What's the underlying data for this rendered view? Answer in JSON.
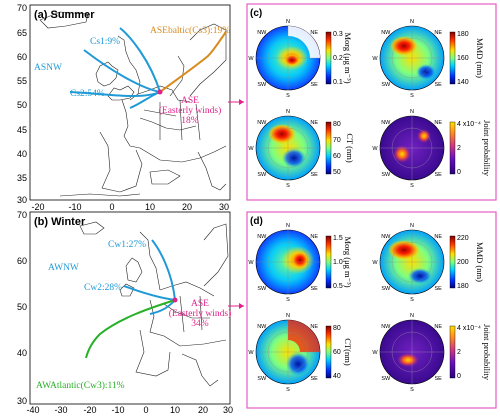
{
  "panels": {
    "summer": {
      "title": "(a) Summer",
      "x_ticks": [
        "-20",
        "-10",
        "0",
        "10",
        "20",
        "30"
      ],
      "y_ticks": [
        "70",
        "65",
        "60",
        "55",
        "50",
        "45",
        "40",
        "35",
        "30"
      ],
      "clusters": [
        {
          "label": "Cs1:9%",
          "color": "#1f9ad6"
        },
        {
          "label": "Cs2:54%",
          "color": "#1f9ad6"
        },
        {
          "label": "ASEbaltic(Cs3):19%",
          "color": "#d98a1c"
        }
      ],
      "sources": [
        {
          "label": "ASNW",
          "color": "#1f9ad6"
        },
        {
          "label": "ASE",
          "sub": "(Easterly winds)",
          "pct": "18%",
          "color": "#e0218a"
        }
      ]
    },
    "winter": {
      "title": "(b) Winter",
      "x_ticks": [
        "-40",
        "-30",
        "-20",
        "-10",
        "0",
        "10",
        "20",
        "30"
      ],
      "y_ticks": [
        "70",
        "60",
        "50",
        "40",
        "30"
      ],
      "clusters": [
        {
          "label": "Cw1:27%",
          "color": "#1f9ad6"
        },
        {
          "label": "Cw2:28%",
          "color": "#1f9ad6"
        },
        {
          "label": "AWAtlantic(Cw3):11%",
          "color": "#28b028"
        }
      ],
      "sources": [
        {
          "label": "AWNW",
          "color": "#1f9ad6"
        },
        {
          "label": "ASE",
          "sub": "(Easterly winds)",
          "pct": "34%",
          "color": "#e0218a"
        }
      ]
    }
  },
  "polar_panels": {
    "c": {
      "label": "(c)",
      "plots": [
        {
          "name": "Morg",
          "cbar_label": "Morg (μg m⁻³)",
          "ticks": [
            "0.3",
            "0.2",
            "0.1"
          ]
        },
        {
          "name": "MMD",
          "cbar_label": "MMD (nm)",
          "ticks": [
            "180",
            "160",
            "140"
          ]
        },
        {
          "name": "CT",
          "cbar_label": "CT (nm)",
          "ticks": [
            "80",
            "70",
            "60",
            "50"
          ]
        },
        {
          "name": "Joint",
          "cbar_label": "Joint probability",
          "ticks": [
            "4 x10⁻⁴",
            "2",
            "0"
          ]
        }
      ]
    },
    "d": {
      "label": "(d)",
      "plots": [
        {
          "name": "Morg",
          "cbar_label": "Morg (μg m⁻³)",
          "ticks": [
            "1.5",
            "1.0",
            "0.5"
          ]
        },
        {
          "name": "MMD",
          "cbar_label": "MMD (nm)",
          "ticks": [
            "220",
            "200",
            "180"
          ]
        },
        {
          "name": "CT",
          "cbar_label": "CT(nm)",
          "ticks": [
            "80",
            "60",
            "40"
          ]
        },
        {
          "name": "Joint",
          "cbar_label": "Joint probability",
          "ticks": [
            "4 x10⁻⁴",
            "2",
            "0"
          ]
        }
      ]
    }
  },
  "compass": [
    "N",
    "NE",
    "E",
    "SE",
    "S",
    "SW",
    "W",
    "NW"
  ],
  "colors": {
    "blue": "#1f9ad6",
    "orange": "#d98a1c",
    "green": "#28b028",
    "magenta": "#e0218a",
    "frame": "#e65cc8"
  }
}
